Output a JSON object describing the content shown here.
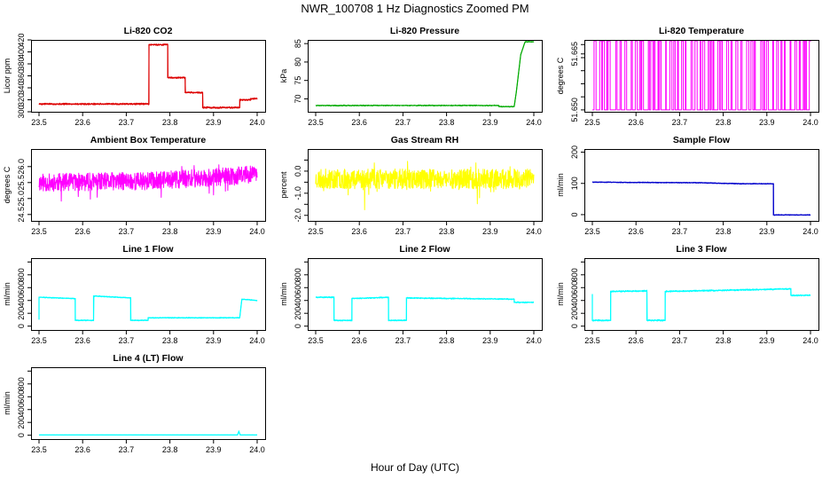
{
  "figure": {
    "title": "NWR_100708  1 Hz Diagnostics Zoomed PM",
    "xlabel": "Hour of Day (UTC)"
  },
  "chart_data": [
    {
      "type": "line",
      "title": "Li-820 CO2",
      "ylabel": "Licor ppm",
      "color": "#dd0000",
      "xlim": [
        23.5,
        24.0
      ],
      "ylim": [
        300,
        420
      ],
      "xticks": [
        "23.5",
        "23.6",
        "23.7",
        "23.8",
        "23.9",
        "24.0"
      ],
      "yticks": [
        {
          "v": 300,
          "label": "300"
        },
        {
          "v": 320,
          "label": "320"
        },
        {
          "v": 340,
          "label": "340"
        },
        {
          "v": 360,
          "label": "360"
        },
        {
          "v": 380,
          "label": "380"
        },
        {
          "v": 400,
          "label": "400"
        },
        {
          "v": 420,
          "label": "420"
        }
      ],
      "series": [
        {
          "name": "CO2",
          "noise": 1.5,
          "x": [
            23.5,
            23.752,
            23.752,
            23.795,
            23.795,
            23.835,
            23.835,
            23.875,
            23.875,
            23.96,
            23.96,
            23.985,
            23.985,
            24.0
          ],
          "y": [
            313,
            313,
            412,
            412,
            357,
            357,
            332,
            332,
            307,
            307,
            320,
            320,
            322,
            322
          ]
        }
      ]
    },
    {
      "type": "line",
      "title": "Li-820 Pressure",
      "ylabel": "kPa",
      "color": "#00aa00",
      "xlim": [
        23.5,
        24.0
      ],
      "ylim": [
        66.5,
        86
      ],
      "xticks": [
        "23.5",
        "23.6",
        "23.7",
        "23.8",
        "23.9",
        "24.0"
      ],
      "yticks": [
        {
          "v": 70,
          "label": "70"
        },
        {
          "v": 75,
          "label": "75"
        },
        {
          "v": 80,
          "label": "80"
        },
        {
          "v": 85,
          "label": "85"
        }
      ],
      "series": [
        {
          "name": "Pressure",
          "noise": 0.15,
          "x": [
            23.5,
            23.92,
            23.92,
            23.955,
            23.96,
            23.97,
            23.98,
            24.0
          ],
          "y": [
            68.2,
            68.2,
            67.9,
            67.9,
            72,
            82,
            85.5,
            85.5
          ]
        }
      ]
    },
    {
      "type": "line",
      "title": "Li-820 Temperature",
      "ylabel": "degrees C",
      "color": "#ff00ff",
      "xlim": [
        23.5,
        24.0
      ],
      "ylim": [
        51.6495,
        51.66875
      ],
      "xticks": [
        "23.5",
        "23.6",
        "23.7",
        "23.8",
        "23.9",
        "24.0"
      ],
      "yticks": [
        {
          "v": 51.65,
          "label": "51.650"
        },
        {
          "v": 51.6535,
          "label": ""
        },
        {
          "v": 51.657,
          "label": ""
        },
        {
          "v": 51.6605,
          "label": ""
        },
        {
          "v": 51.664,
          "label": ""
        },
        {
          "v": 51.665,
          "label": "51.665"
        },
        {
          "v": 51.6675,
          "label": ""
        }
      ],
      "series": [
        {
          "name": "Temperature",
          "mode": "toggle",
          "low": 51.65,
          "high": 51.6685,
          "seed": 7
        }
      ]
    },
    {
      "type": "line",
      "title": "Ambient Box Temperature",
      "ylabel": "degrees C",
      "color": "#ff00ff",
      "xlim": [
        23.5,
        24.0
      ],
      "ylim": [
        24.3,
        26.55
      ],
      "xticks": [
        "23.5",
        "23.6",
        "23.7",
        "23.8",
        "23.9",
        "24.0"
      ],
      "yticks": [
        {
          "v": 24.5,
          "label": "24.5"
        },
        {
          "v": 25.0,
          "label": "25.0"
        },
        {
          "v": 25.5,
          "label": "25.5"
        },
        {
          "v": 26.0,
          "label": "26.0"
        }
      ],
      "series": [
        {
          "name": "Box Temp",
          "mode": "noise",
          "center": 25.55,
          "amp": 0.28,
          "spike": 0.55,
          "seed": 11,
          "drift": [
            [
              23.5,
              25.5
            ],
            [
              23.75,
              25.55
            ],
            [
              23.95,
              25.7
            ],
            [
              24.0,
              25.8
            ]
          ]
        }
      ]
    },
    {
      "type": "line",
      "title": "Gas Stream RH",
      "ylabel": "percent",
      "color": "#ffff00",
      "xlim": [
        23.5,
        24.0
      ],
      "ylim": [
        -2.25,
        1.0
      ],
      "xticks": [
        "23.5",
        "23.6",
        "23.7",
        "23.8",
        "23.9",
        "24.0"
      ],
      "yticks": [
        {
          "v": -2.0,
          "label": "-2.0"
        },
        {
          "v": -1.5,
          "label": ""
        },
        {
          "v": -1.0,
          "label": "-1.0"
        },
        {
          "v": -0.5,
          "label": ""
        },
        {
          "v": 0.0,
          "label": "0.0"
        },
        {
          "v": 0.5,
          "label": ""
        }
      ],
      "series": [
        {
          "name": "RH",
          "mode": "noise",
          "center": -0.35,
          "amp": 0.45,
          "spike": 0.9,
          "seed": 23,
          "drift": [
            [
              23.5,
              -0.35
            ],
            [
              24.0,
              -0.35
            ]
          ]
        }
      ]
    },
    {
      "type": "line",
      "title": "Sample Flow",
      "ylabel": "ml/min",
      "color": "#0000cc",
      "xlim": [
        23.5,
        24.0
      ],
      "ylim": [
        -20,
        210
      ],
      "xticks": [
        "23.5",
        "23.6",
        "23.7",
        "23.8",
        "23.9",
        "24.0"
      ],
      "yticks": [
        {
          "v": 0,
          "label": "0"
        },
        {
          "v": 100,
          "label": "100"
        },
        {
          "v": 200,
          "label": "200"
        }
      ],
      "series": [
        {
          "name": "Sample Flow",
          "noise": 1.5,
          "x": [
            23.5,
            23.6,
            23.75,
            23.8,
            23.84,
            23.915,
            23.915,
            24.0
          ],
          "y": [
            104,
            103,
            102,
            100,
            99,
            99,
            -1,
            -1
          ]
        }
      ]
    },
    {
      "type": "line",
      "title": "Line 1 Flow",
      "ylabel": "ml/min",
      "color": "#00ffff",
      "xlim": [
        23.5,
        24.0
      ],
      "ylim": [
        -60,
        1060
      ],
      "xticks": [
        "23.5",
        "23.6",
        "23.7",
        "23.8",
        "23.9",
        "24.0"
      ],
      "yticks": [
        {
          "v": 0,
          "label": "0"
        },
        {
          "v": 200,
          "label": "200"
        },
        {
          "v": 400,
          "label": "400"
        },
        {
          "v": 600,
          "label": "600"
        },
        {
          "v": 800,
          "label": "800"
        },
        {
          "v": 1000,
          "label": ""
        }
      ],
      "series": [
        {
          "name": "Line 1",
          "noise": 8,
          "x": [
            23.5,
            23.5,
            23.503,
            23.583,
            23.583,
            23.625,
            23.625,
            23.71,
            23.71,
            23.75,
            23.75,
            23.96,
            23.965,
            24.0
          ],
          "y": [
            100,
            450,
            450,
            430,
            90,
            90,
            470,
            440,
            90,
            90,
            130,
            130,
            420,
            400
          ]
        }
      ]
    },
    {
      "type": "line",
      "title": "Line 2 Flow",
      "ylabel": "ml/min",
      "color": "#00ffff",
      "xlim": [
        23.5,
        24.0
      ],
      "ylim": [
        -60,
        1060
      ],
      "xticks": [
        "23.5",
        "23.6",
        "23.7",
        "23.8",
        "23.9",
        "24.0"
      ],
      "yticks": [
        {
          "v": 0,
          "label": "0"
        },
        {
          "v": 200,
          "label": "200"
        },
        {
          "v": 400,
          "label": "400"
        },
        {
          "v": 600,
          "label": "600"
        },
        {
          "v": 800,
          "label": "800"
        },
        {
          "v": 1000,
          "label": ""
        }
      ],
      "series": [
        {
          "name": "Line 2",
          "noise": 10,
          "x": [
            23.5,
            23.542,
            23.542,
            23.583,
            23.583,
            23.667,
            23.667,
            23.708,
            23.708,
            23.955,
            23.955,
            24.0
          ],
          "y": [
            450,
            450,
            90,
            90,
            430,
            450,
            90,
            90,
            440,
            420,
            370,
            370
          ]
        }
      ]
    },
    {
      "type": "line",
      "title": "Line 3 Flow",
      "ylabel": "ml/min",
      "color": "#00ffff",
      "xlim": [
        23.5,
        24.0
      ],
      "ylim": [
        -60,
        1060
      ],
      "xticks": [
        "23.5",
        "23.6",
        "23.7",
        "23.8",
        "23.9",
        "24.0"
      ],
      "yticks": [
        {
          "v": 0,
          "label": "0"
        },
        {
          "v": 200,
          "label": "200"
        },
        {
          "v": 400,
          "label": "400"
        },
        {
          "v": 600,
          "label": "600"
        },
        {
          "v": 800,
          "label": "800"
        },
        {
          "v": 1000,
          "label": ""
        }
      ],
      "series": [
        {
          "name": "Line 3",
          "noise": 12,
          "x": [
            23.5,
            23.5,
            23.503,
            23.542,
            23.542,
            23.625,
            23.625,
            23.667,
            23.667,
            23.955,
            23.955,
            24.0
          ],
          "y": [
            500,
            90,
            90,
            90,
            540,
            550,
            90,
            90,
            540,
            580,
            480,
            480
          ]
        }
      ]
    },
    {
      "type": "line",
      "title": "Line 4 (LT) Flow",
      "ylabel": "ml/min",
      "color": "#00ffff",
      "xlim": [
        23.5,
        24.0
      ],
      "ylim": [
        -60,
        1060
      ],
      "xticks": [
        "23.5",
        "23.6",
        "23.7",
        "23.8",
        "23.9",
        "24.0"
      ],
      "yticks": [
        {
          "v": 0,
          "label": "0"
        },
        {
          "v": 200,
          "label": "200"
        },
        {
          "v": 400,
          "label": "400"
        },
        {
          "v": 600,
          "label": "600"
        },
        {
          "v": 800,
          "label": "800"
        },
        {
          "v": 1000,
          "label": ""
        }
      ],
      "series": [
        {
          "name": "Line 4",
          "noise": 2,
          "x": [
            23.5,
            23.955,
            23.958,
            23.961,
            24.0
          ],
          "y": [
            5,
            5,
            60,
            5,
            5
          ]
        }
      ]
    }
  ]
}
